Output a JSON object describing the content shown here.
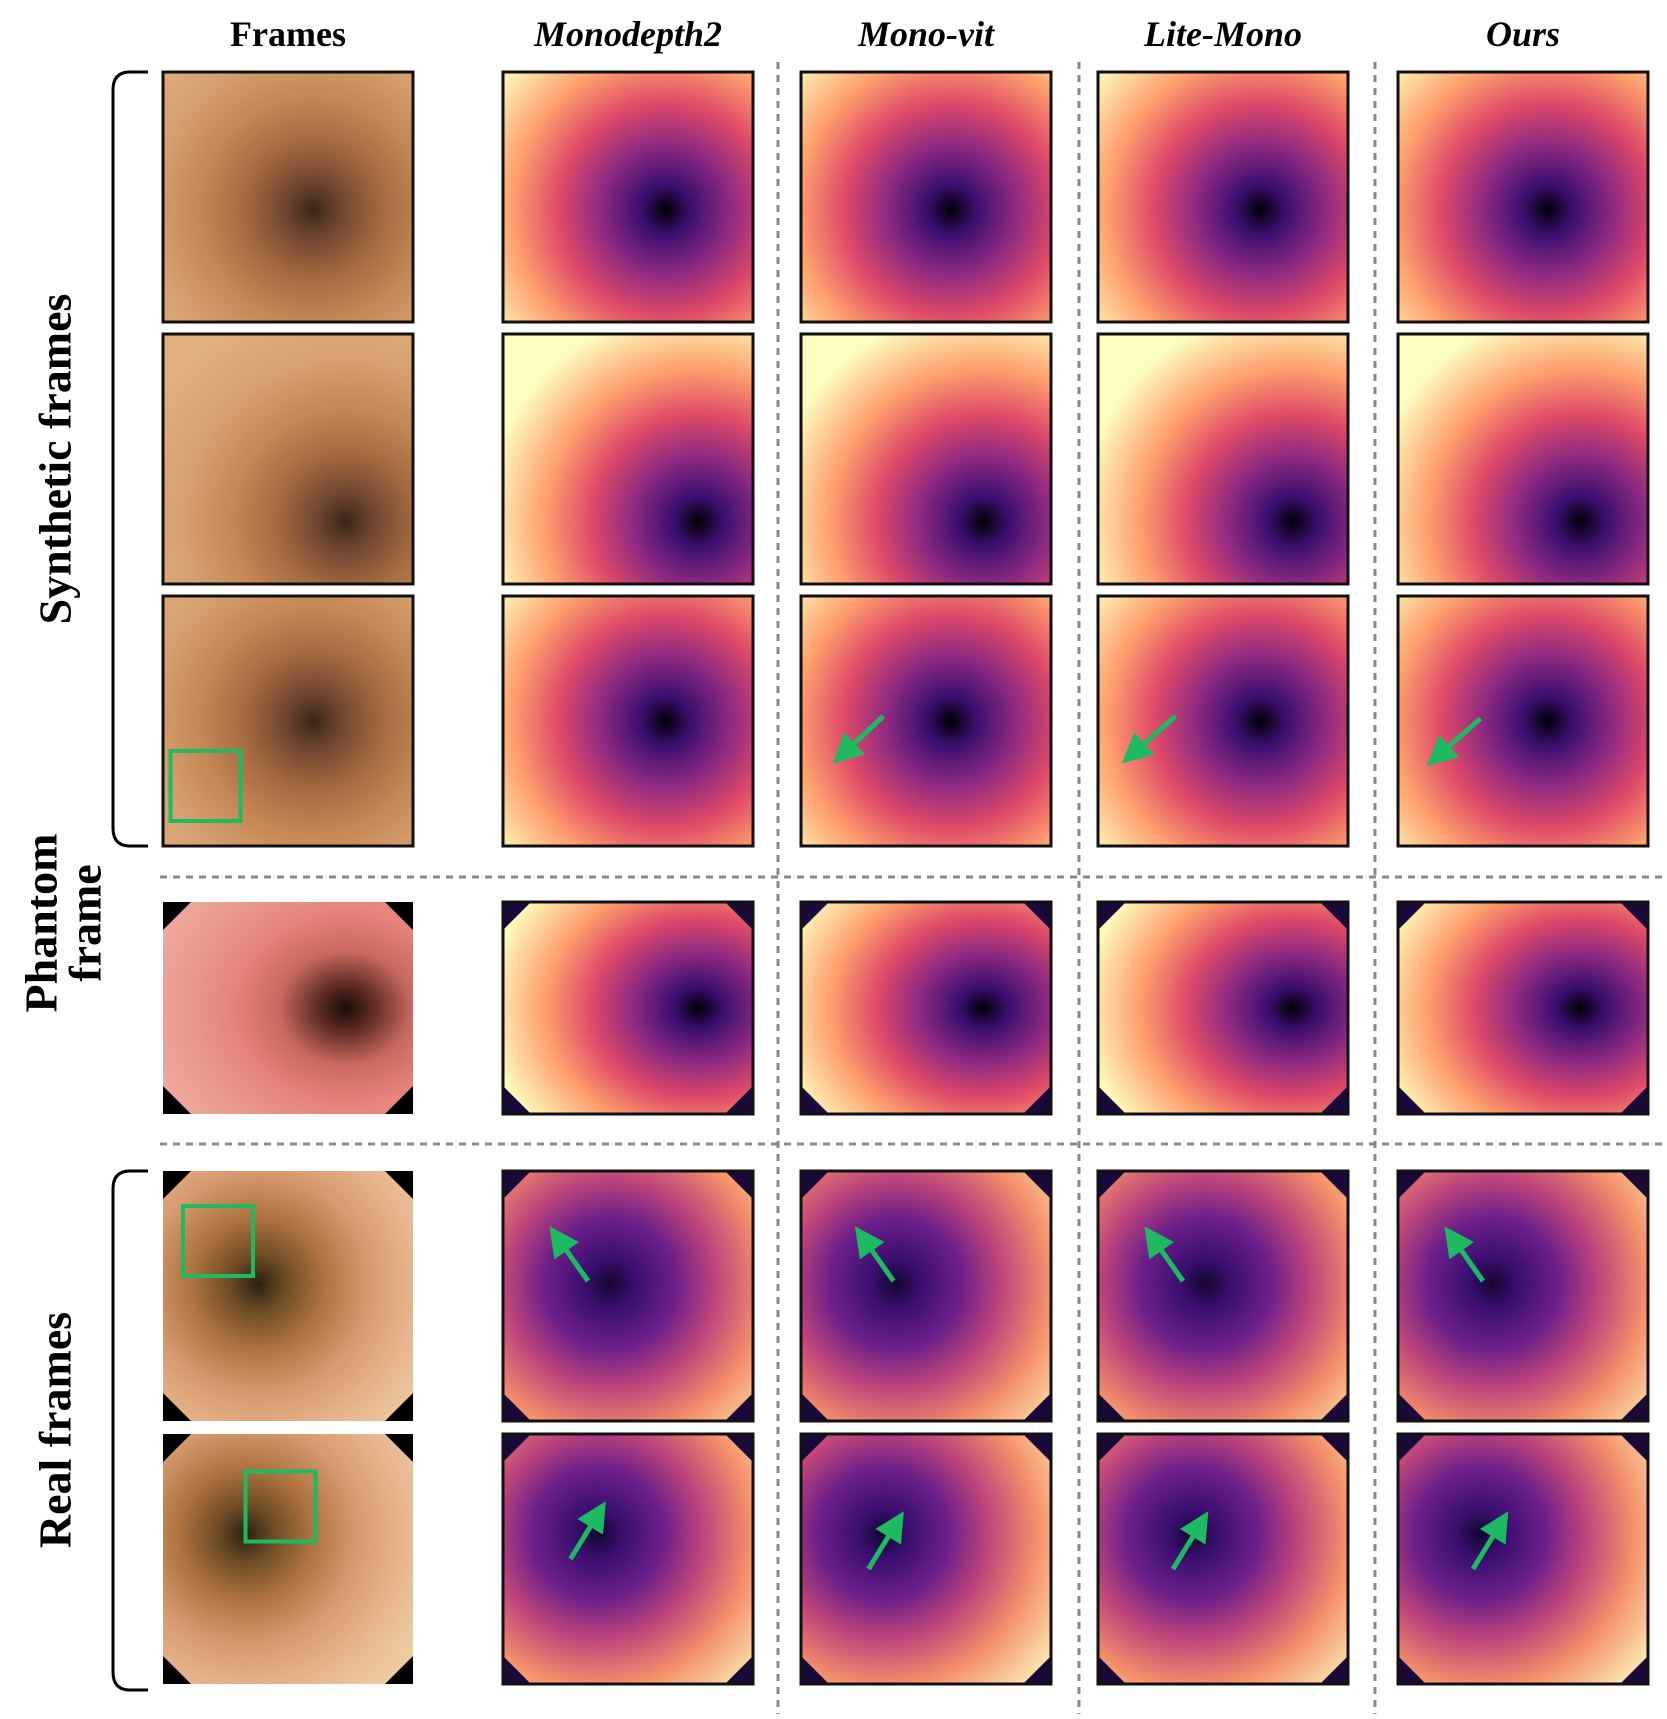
{
  "header": {
    "columns": [
      "Frames",
      "Monodepth2",
      "Mono-vit",
      "Lite-Mono",
      "Ours"
    ]
  },
  "row_groups": [
    {
      "lines": [
        "Synthetic frames"
      ]
    },
    {
      "lines": [
        "Phantom",
        "frame"
      ]
    },
    {
      "lines": [
        "Real frames"
      ]
    }
  ]
}
